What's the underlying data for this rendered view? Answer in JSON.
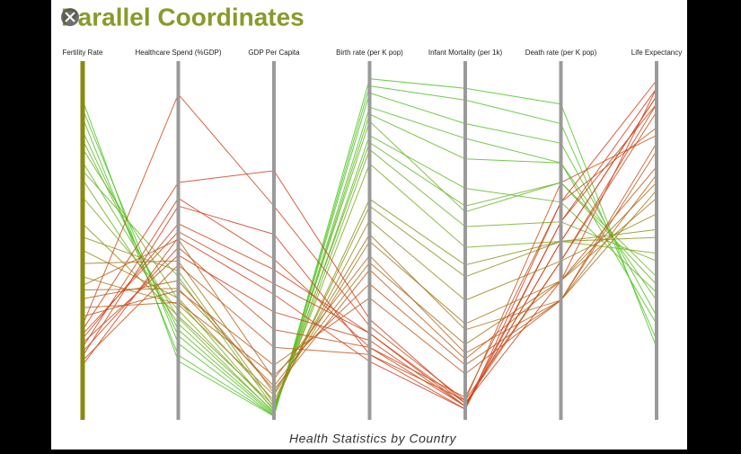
{
  "chart_data": {
    "type": "parallel",
    "title": "Parallel Coordinates",
    "caption": "Health Statistics by Country",
    "dimensions": [
      {
        "name": "Fertility Rate",
        "ylim": [
          0,
          8
        ]
      },
      {
        "name": "Healthcare Spend (%GDP)",
        "ylim": [
          0,
          18
        ]
      },
      {
        "name": "GDP Per Capita",
        "ylim": [
          0,
          100000
        ]
      },
      {
        "name": "Birth rate (per K pop)",
        "ylim": [
          0,
          50
        ]
      },
      {
        "name": "Infant Mortality (per 1k)",
        "ylim": [
          0,
          120
        ]
      },
      {
        "name": "Death rate (per K pop)",
        "ylim": [
          0,
          18
        ]
      },
      {
        "name": "Life Expectancy",
        "ylim": [
          40,
          85
        ]
      }
    ],
    "series": [
      {
        "color": "#5cc12a",
        "values": [
          6.5,
          4.2,
          900,
          44,
          95,
          13,
          52
        ]
      },
      {
        "color": "#62bd28",
        "values": [
          5.8,
          5.1,
          1500,
          40,
          78,
          11,
          56
        ]
      },
      {
        "color": "#55c52b",
        "values": [
          7.0,
          3.8,
          600,
          47,
          108,
          15,
          50
        ]
      },
      {
        "color": "#6cb826",
        "values": [
          6.1,
          6.0,
          2200,
          42,
          70,
          12,
          58
        ]
      },
      {
        "color": "#74b324",
        "values": [
          5.4,
          4.8,
          1800,
          38,
          65,
          10,
          60
        ]
      },
      {
        "color": "#58c22a",
        "values": [
          6.8,
          3.2,
          700,
          46,
          100,
          14,
          53
        ]
      },
      {
        "color": "#7caf22",
        "values": [
          5.0,
          5.5,
          2600,
          36,
          58,
          9,
          61
        ]
      },
      {
        "color": "#60bf29",
        "values": [
          6.3,
          4.5,
          1200,
          43,
          88,
          13,
          55
        ]
      },
      {
        "color": "#68ba27",
        "values": [
          5.6,
          7.2,
          3000,
          39,
          72,
          12,
          57
        ]
      },
      {
        "color": "#50c82c",
        "values": [
          7.2,
          2.9,
          500,
          48,
          112,
          16,
          49
        ]
      },
      {
        "color": "#9a8c1e",
        "values": [
          3.8,
          6.1,
          5000,
          28,
          40,
          8,
          66
        ]
      },
      {
        "color": "#a6801f",
        "values": [
          3.2,
          5.8,
          6500,
          25,
          32,
          7,
          68
        ]
      },
      {
        "color": "#909520",
        "values": [
          4.1,
          7.5,
          4000,
          30,
          48,
          9,
          64
        ]
      },
      {
        "color": "#b1721f",
        "values": [
          2.9,
          6.6,
          9000,
          22,
          25,
          7,
          70
        ]
      },
      {
        "color": "#ac7a1f",
        "values": [
          3.5,
          8.0,
          7000,
          26,
          30,
          6,
          69
        ]
      },
      {
        "color": "#8a991f",
        "values": [
          4.4,
          5.2,
          3500,
          31,
          52,
          9,
          63
        ]
      },
      {
        "color": "#b8681f",
        "values": [
          3.0,
          9.1,
          11000,
          23,
          22,
          6,
          71
        ]
      },
      {
        "color": "#bd621f",
        "values": [
          2.7,
          7.0,
          8000,
          21,
          20,
          7,
          72
        ]
      },
      {
        "color": "#d2451e",
        "values": [
          1.6,
          11.2,
          45000,
          10,
          4,
          9,
          81
        ]
      },
      {
        "color": "#ce4a1e",
        "values": [
          1.9,
          9.5,
          38000,
          12,
          5,
          8,
          80
        ]
      },
      {
        "color": "#d5411d",
        "values": [
          1.4,
          10.8,
          52000,
          9,
          3,
          10,
          82
        ]
      },
      {
        "color": "#cb4f1e",
        "values": [
          2.1,
          16.5,
          60000,
          13,
          6,
          8,
          79
        ]
      },
      {
        "color": "#c8541e",
        "values": [
          1.5,
          8.7,
          25000,
          10,
          7,
          11,
          77
        ]
      },
      {
        "color": "#d2461e",
        "values": [
          1.8,
          9.9,
          42000,
          12,
          4,
          9,
          81
        ]
      },
      {
        "color": "#c25b1f",
        "values": [
          2.3,
          6.5,
          15000,
          17,
          15,
          6,
          75
        ]
      },
      {
        "color": "#c5571e",
        "values": [
          1.3,
          7.8,
          20000,
          9,
          6,
          12,
          76
        ]
      },
      {
        "color": "#d4431d",
        "values": [
          2.0,
          12.0,
          70000,
          14,
          5,
          7,
          82
        ]
      },
      {
        "color": "#cf481e",
        "values": [
          1.7,
          8.3,
          30000,
          11,
          4,
          10,
          80
        ]
      },
      {
        "color": "#c05e1f",
        "values": [
          2.5,
          5.9,
          12000,
          19,
          18,
          6,
          74
        ]
      },
      {
        "color": "#d6401d",
        "values": [
          1.2,
          9.2,
          35000,
          8,
          3,
          11,
          83
        ]
      }
    ]
  }
}
